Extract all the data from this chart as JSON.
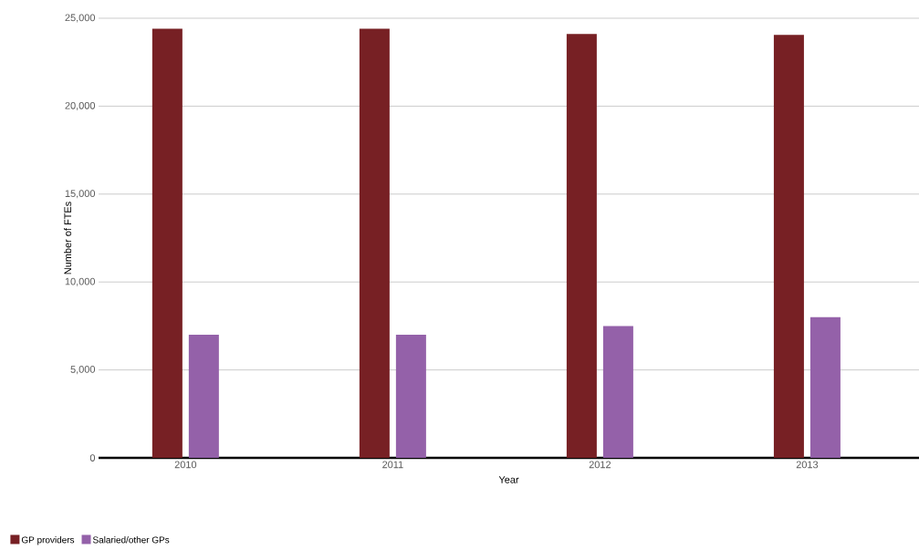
{
  "chart_data": {
    "type": "bar",
    "xlabel": "Year",
    "ylabel": "Number of FTEs",
    "categories": [
      "2010",
      "2011",
      "2012",
      "2013"
    ],
    "series": [
      {
        "name": "GP providers",
        "color": "#772024",
        "values": [
          24400,
          24400,
          24100,
          24050
        ]
      },
      {
        "name": "Salaried/other GPs",
        "color": "#9461a9",
        "values": [
          7000,
          7000,
          7500,
          8000
        ]
      }
    ],
    "ylim": [
      0,
      25000
    ],
    "yticks": [
      0,
      {
        "value": 5000,
        "label": "5,000"
      },
      {
        "value": 10000,
        "label": "10,000"
      },
      {
        "value": 15000,
        "label": "15,000"
      },
      {
        "value": 20000,
        "label": "20,000"
      },
      {
        "value": 25000,
        "label": "25,000"
      }
    ],
    "grid": "y",
    "legend": "bottom left"
  }
}
